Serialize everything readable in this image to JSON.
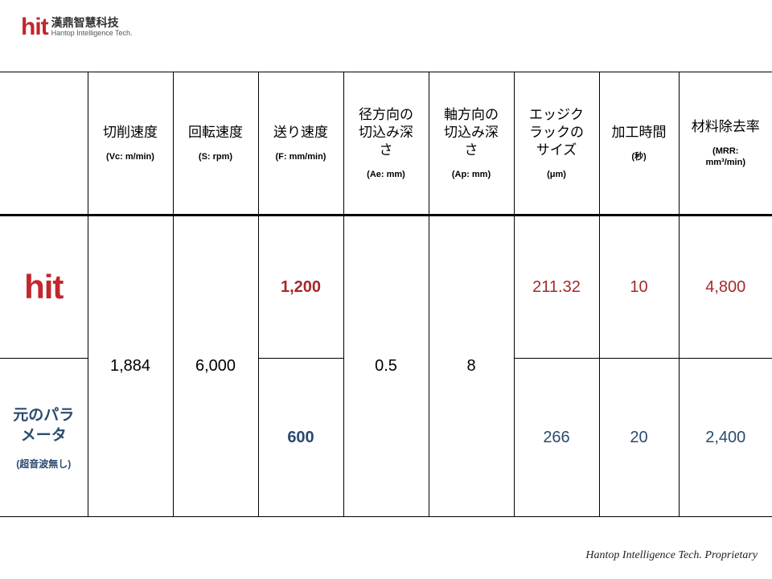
{
  "logo": {
    "mark": "hit",
    "chinese": "漢鼎智慧科技",
    "english": "Hantop Intelligence Tech."
  },
  "table": {
    "headers": [
      {
        "main": "切削速度",
        "sub": "(Vc: m/min)"
      },
      {
        "main": "回転速度",
        "sub": "(S: rpm)"
      },
      {
        "main": "送り速度",
        "sub": "(F: mm/min)"
      },
      {
        "main": "径方向の切込み深さ",
        "sub": "(Ae: mm)"
      },
      {
        "main": "軸方向の切込み深さ",
        "sub": "(Ap: mm)"
      },
      {
        "main": "エッジクラックのサイズ",
        "sub": "(μm)"
      },
      {
        "main": "加工時間",
        "sub": "(秒)"
      },
      {
        "main": "材料除去率",
        "sub": "(MRR: mm³/min)"
      }
    ],
    "rows": [
      {
        "label": "hit",
        "feed": "1,200",
        "crack": "211.32",
        "time": "10",
        "mrr": "4,800"
      },
      {
        "label": "元のパラメータ",
        "label_sub": "(超音波無し)",
        "feed": "600",
        "crack": "266",
        "time": "20",
        "mrr": "2,400"
      }
    ],
    "shared": {
      "vc": "1,884",
      "rpm": "6,000",
      "ae": "0.5",
      "ap": "8"
    }
  },
  "footer": "Hantop Intelligence Tech. Proprietary",
  "colors": {
    "hit_red": "#a5292a",
    "original_blue": "#2b4a6e"
  }
}
